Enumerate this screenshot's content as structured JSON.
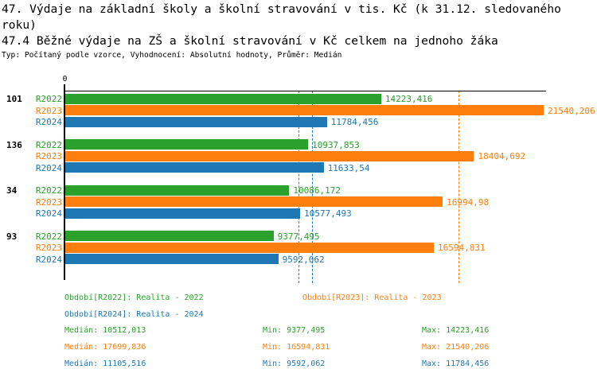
{
  "header": {
    "title": "47. Výdaje na základní školy a školní stravování v tis. Kč (k 31.12. sledovaného roku)",
    "subtitle": "47.4 Běžné výdaje na ZŠ a školní stravování v Kč celkem na jednoho žáka",
    "meta": "Typ: Počítaný podle vzorce, Vyhodnocení: Absolutní hodnoty, Průměr: Medián"
  },
  "colors": {
    "r2022": "#2CA02C",
    "r2023": "#FF7F0E",
    "r2024": "#1F77B4",
    "axis": "#000000"
  },
  "chart_data": {
    "type": "bar",
    "orientation": "horizontal",
    "title": "47.4 Běžné výdaje na ZŠ a školní stravování v Kč celkem na jednoho žáka",
    "axis": {
      "min": 0,
      "tick_labels": [
        "0"
      ],
      "implied_max": 21540.206,
      "grid": false
    },
    "categories": [
      "101",
      "136",
      "34",
      "93"
    ],
    "series": [
      {
        "name": "R2022",
        "color_key": "r2022",
        "values": [
          14223.416,
          10937.853,
          10086.172,
          9377.495
        ],
        "display": [
          "14223,416",
          "10937,853",
          "10086,172",
          "9377,495"
        ],
        "median": 10512.013
      },
      {
        "name": "R2023",
        "color_key": "r2023",
        "values": [
          21540.206,
          18404.692,
          16994.98,
          16594.831
        ],
        "display": [
          "21540,206",
          "18404,692",
          "16994,98",
          "16594,831"
        ],
        "median": 17699.836
      },
      {
        "name": "R2024",
        "color_key": "r2024",
        "values": [
          11784.456,
          11633.54,
          10577.493,
          9592.062
        ],
        "display": [
          "11784,456",
          "11633,54",
          "10577,493",
          "9592,062"
        ],
        "median": 11105.516
      }
    ],
    "median_lines": [
      {
        "series": "R2022",
        "value": 10512.013,
        "color_key": "r2022"
      },
      {
        "series": "R2023",
        "value": 17699.836,
        "color_key": "r2023"
      },
      {
        "series": "R2024",
        "value": 11105.516,
        "color_key": "r2024"
      }
    ],
    "legend_position": "bottom"
  },
  "legend": {
    "items": [
      {
        "label": "Období[R2022]: Realita - 2022",
        "color_key": "r2022"
      },
      {
        "label": "Období[R2023]: Realita - 2023",
        "color_key": "r2023"
      },
      {
        "label": "Období[R2024]: Realita - 2024",
        "color_key": "r2024"
      }
    ]
  },
  "stats": {
    "rows": [
      {
        "color_key": "r2022",
        "median": "Medián: 10512,013",
        "min": "Min: 9377,495",
        "max": "Max: 14223,416"
      },
      {
        "color_key": "r2023",
        "median": "Medián: 17699,836",
        "min": "Min: 16594,831",
        "max": "Max: 21540,206"
      },
      {
        "color_key": "r2024",
        "median": "Medián: 11105,516",
        "min": "Min: 9592,062",
        "max": "Max: 11784,456"
      }
    ]
  }
}
